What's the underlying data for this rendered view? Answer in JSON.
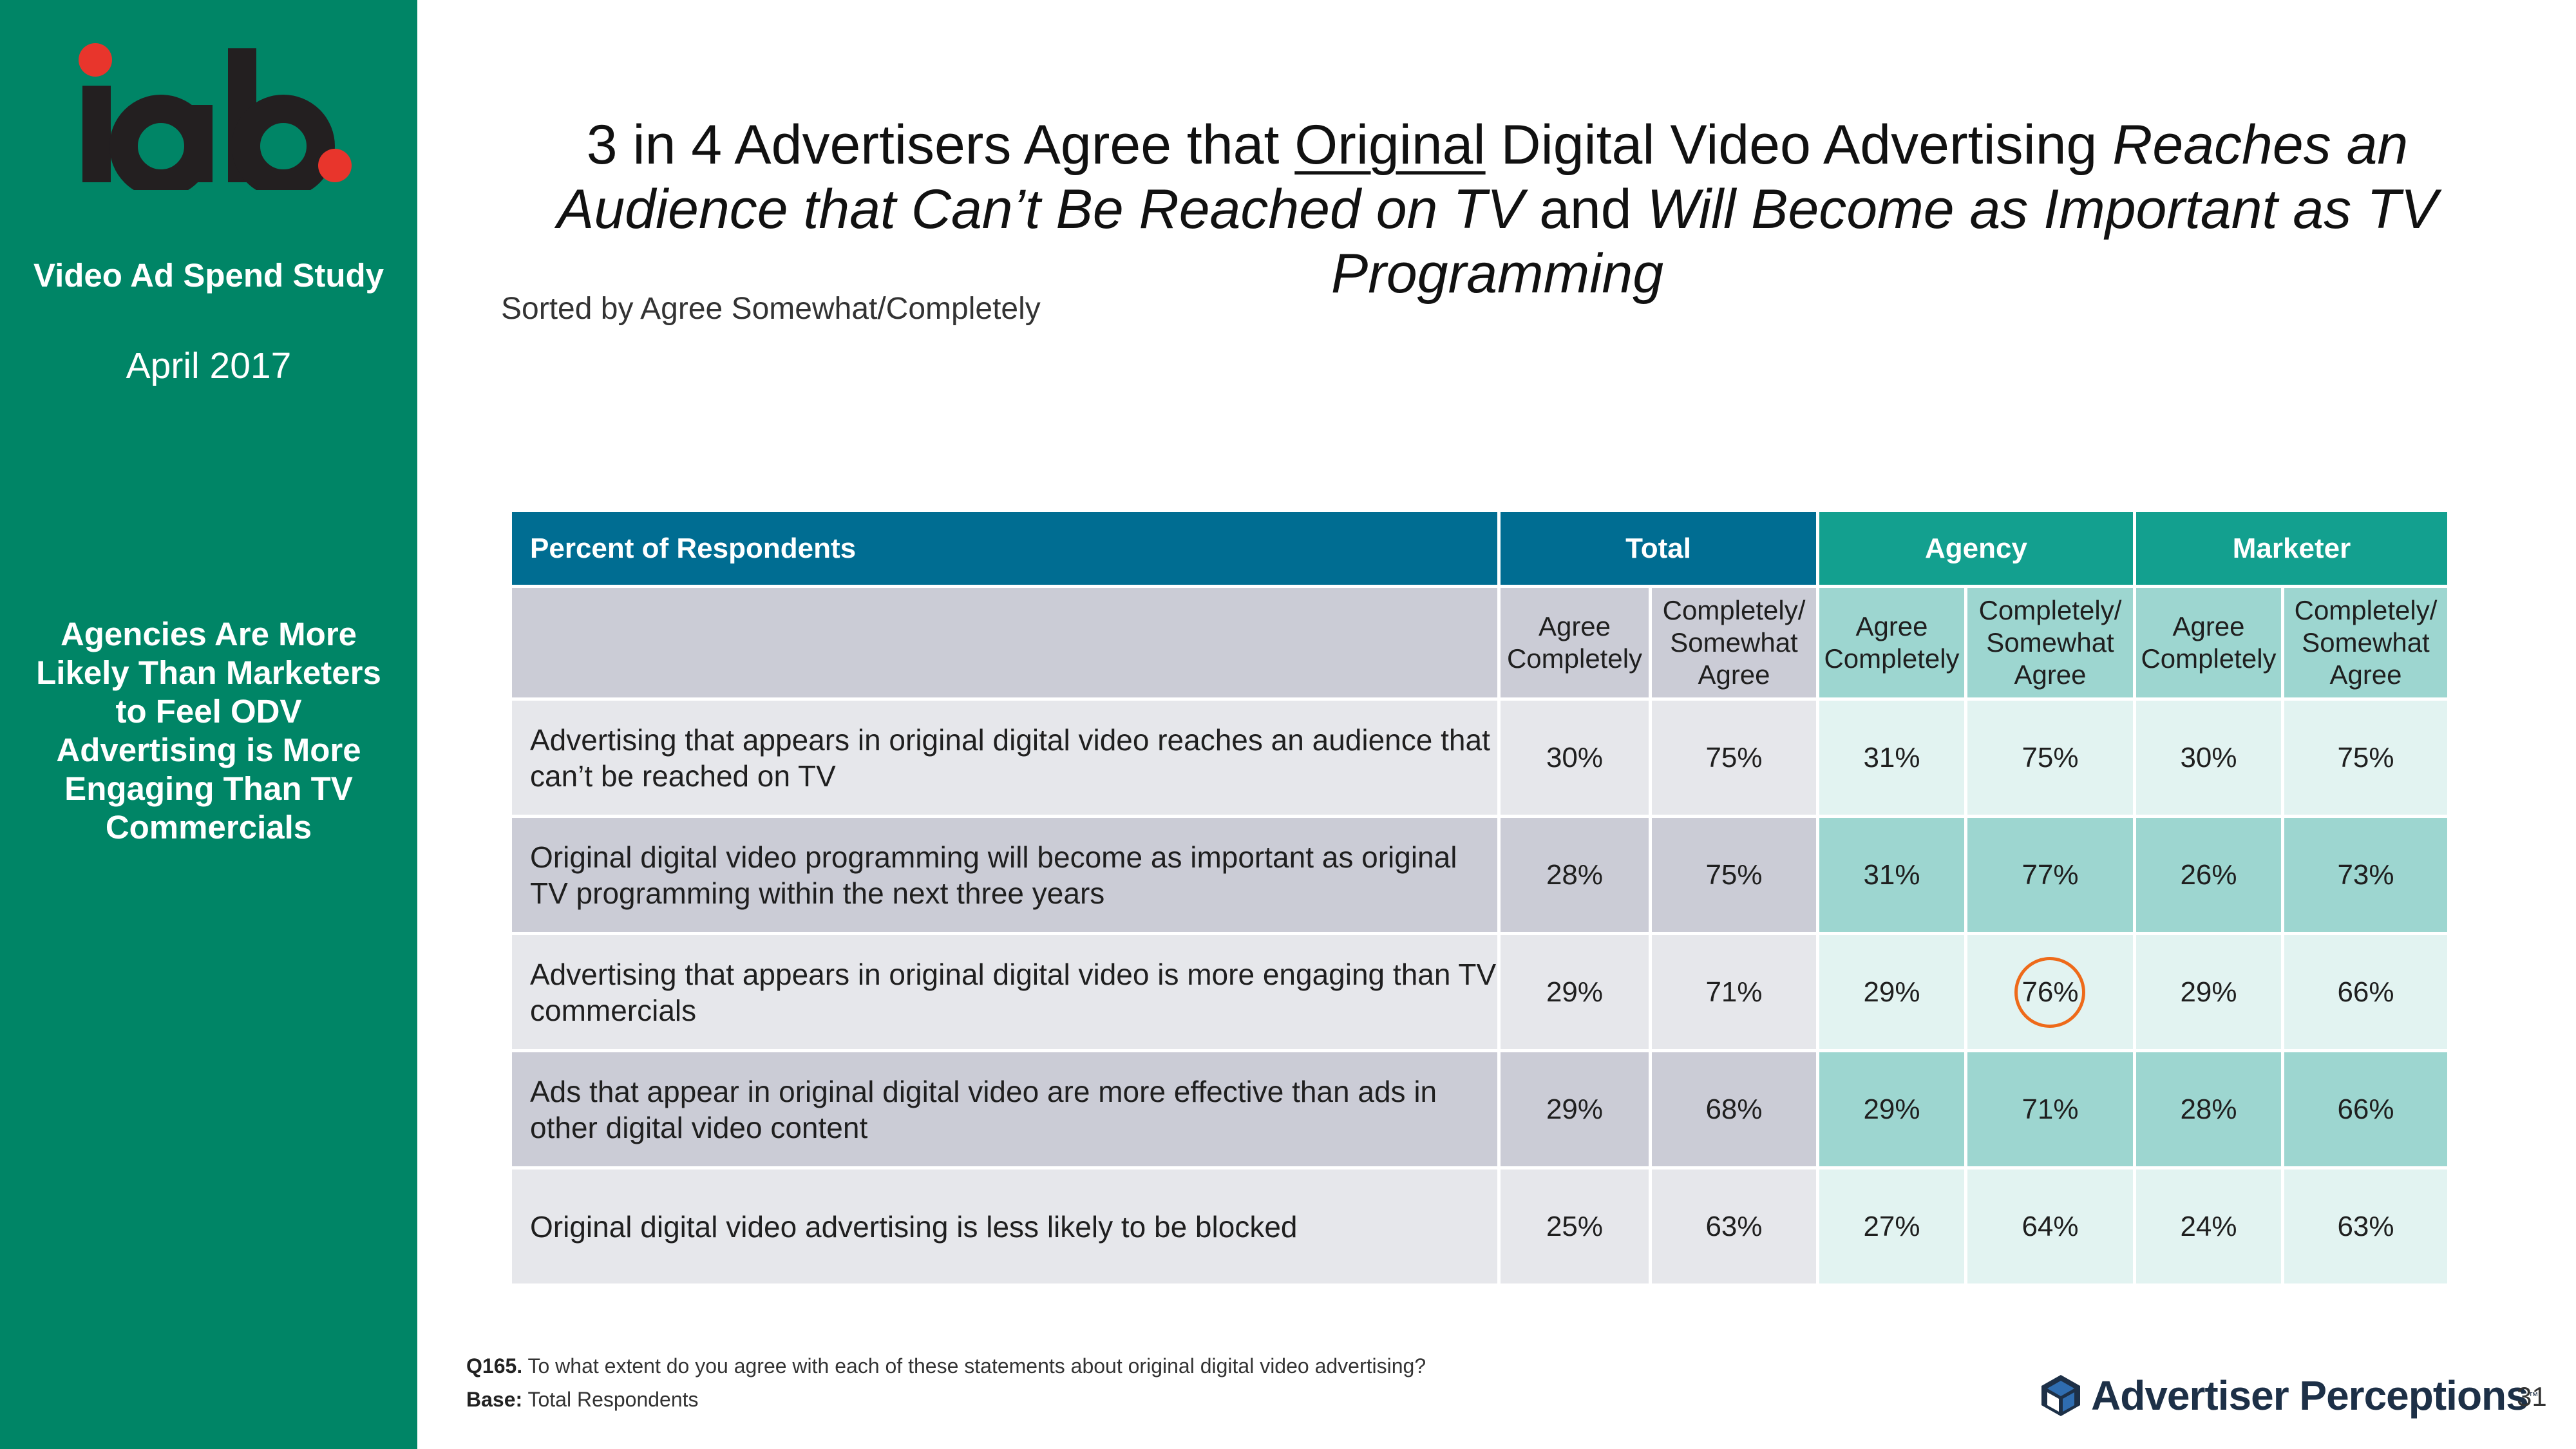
{
  "sidebar": {
    "logo_text": "iab",
    "study_name": "Video Ad Spend Study",
    "date": "April 2017",
    "note": "Agencies Are More Likely Than Marketers to Feel ODV Advertising is More Engaging Than TV Commercials"
  },
  "title": {
    "part1": "3 in 4 Advertisers Agree that ",
    "underlined": "Original",
    "part2": " Digital Video Advertising ",
    "italic1": "Reaches an Audience that Can’t Be Reached on TV",
    "part3": " and ",
    "italic2": "Will Become as Important as TV Programming"
  },
  "subtitle": "Sorted by Agree Somewhat/Completely",
  "table": {
    "header": {
      "label": "Percent of Respondents",
      "groups": [
        "Total",
        "Agency",
        "Marketer"
      ]
    },
    "subheaders": [
      "Agree Completely",
      "Completely/ Somewhat Agree",
      "Agree Completely",
      "Completely/ Somewhat Agree",
      "Agree Completely",
      "Completely/ Somewhat Agree"
    ],
    "rows": [
      {
        "statement": "Advertising that appears in original digital video reaches an audience that can’t be reached on TV",
        "values": [
          "30%",
          "75%",
          "31%",
          "75%",
          "30%",
          "75%"
        ]
      },
      {
        "statement": "Original digital video programming will become as important as original TV programming within the next three years",
        "values": [
          "28%",
          "75%",
          "31%",
          "77%",
          "26%",
          "73%"
        ]
      },
      {
        "statement": "Advertising that appears in original digital video is more engaging than TV commercials",
        "values": [
          "29%",
          "71%",
          "29%",
          "76%",
          "29%",
          "66%"
        ]
      },
      {
        "statement": "Ads that appear in original digital video are more effective than ads in other digital video content",
        "values": [
          "29%",
          "68%",
          "29%",
          "71%",
          "28%",
          "66%"
        ]
      },
      {
        "statement": "Original digital video advertising is less likely to be blocked",
        "values": [
          "25%",
          "63%",
          "27%",
          "64%",
          "24%",
          "63%"
        ]
      }
    ],
    "highlighted_cell": {
      "row": 3,
      "column": "Agency Completely/ Somewhat Agree",
      "value": "76%",
      "highlight_color": "#ee6a1a"
    }
  },
  "footer": {
    "question_label": "Q165.",
    "question_text": "To what extent do you agree with each of these statements about original digital video advertising?",
    "base_label": "Base:",
    "base_text": "Total Respondents",
    "brand": "Advertiser Perceptions",
    "brand_tm": "™",
    "page_number": "31"
  },
  "colors": {
    "sidebar": "#008566",
    "header_blue": "#006d92",
    "header_teal": "#13a08f",
    "row_gray_dark": "#cbccd6",
    "row_gray_light": "#e6e7eb",
    "row_teal_dark": "#9dd6d0",
    "row_teal_light": "#e2f3f1",
    "iab_red": "#e8352c"
  }
}
